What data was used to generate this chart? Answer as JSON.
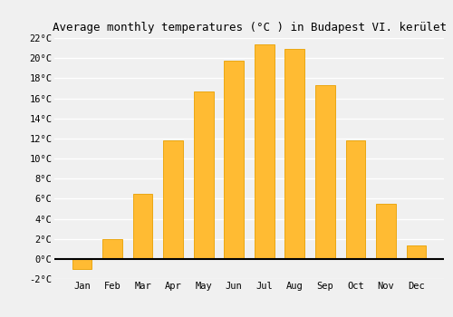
{
  "months": [
    "Jan",
    "Feb",
    "Mar",
    "Apr",
    "May",
    "Jun",
    "Jul",
    "Aug",
    "Sep",
    "Oct",
    "Nov",
    "Dec"
  ],
  "temperatures": [
    -1.0,
    2.0,
    6.5,
    11.8,
    16.7,
    19.7,
    21.4,
    20.9,
    17.3,
    11.8,
    5.5,
    1.3
  ],
  "bar_color": "#FFBB33",
  "bar_edge_color": "#E8A000",
  "title": "Average monthly temperatures (°C ) in Budapest VI. kerület",
  "ylim": [
    -2,
    22
  ],
  "yticks": [
    -2,
    0,
    2,
    4,
    6,
    8,
    10,
    12,
    14,
    16,
    18,
    20,
    22
  ],
  "ytick_labels": [
    "-2°C",
    "0°C",
    "2°C",
    "4°C",
    "6°C",
    "8°C",
    "10°C",
    "12°C",
    "14°C",
    "16°C",
    "18°C",
    "20°C",
    "22°C"
  ],
  "background_color": "#f0f0f0",
  "grid_color": "#ffffff",
  "title_fontsize": 9,
  "tick_fontsize": 7.5
}
